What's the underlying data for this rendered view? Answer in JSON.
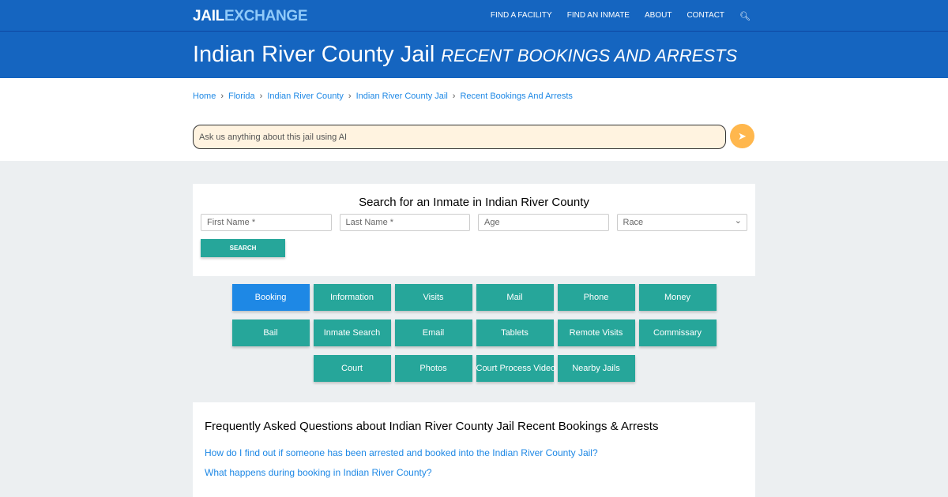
{
  "brand": {
    "part1": "JAIL",
    "part2": "EXCHANGE"
  },
  "nav": [
    "FIND A FACILITY",
    "FIND AN INMATE",
    "ABOUT",
    "CONTACT"
  ],
  "hero": {
    "title": "Indian River County Jail",
    "subtitle": "RECENT BOOKINGS AND ARRESTS"
  },
  "breadcrumb": [
    "Home",
    "Florida",
    "Indian River County",
    "Indian River County Jail",
    "Recent Bookings And Arrests"
  ],
  "ai": {
    "placeholder": "Ask us anything about this jail using AI"
  },
  "search": {
    "title": "Search for an Inmate in Indian River County",
    "first": "First Name *",
    "last": "Last Name *",
    "age": "Age",
    "race": "Race",
    "button": "SEARCH"
  },
  "buttons": [
    "Booking",
    "Information",
    "Visits",
    "Mail",
    "Phone",
    "Money",
    "Bail",
    "Inmate Search",
    "Email",
    "Tablets",
    "Remote Visits",
    "Commissary",
    "Court",
    "Photos",
    "Court Process Video",
    "Nearby Jails"
  ],
  "faq": {
    "title": "Frequently Asked Questions about Indian River County Jail Recent Bookings & Arrests",
    "questions": [
      "How do I find out if someone has been arrested and booked into the Indian River County Jail?",
      "What happens during booking in Indian River County?"
    ]
  },
  "colors": {
    "primary": "#1565c0",
    "teal": "#26a69a",
    "active": "#1e88e5",
    "send": "#ffb74d"
  }
}
